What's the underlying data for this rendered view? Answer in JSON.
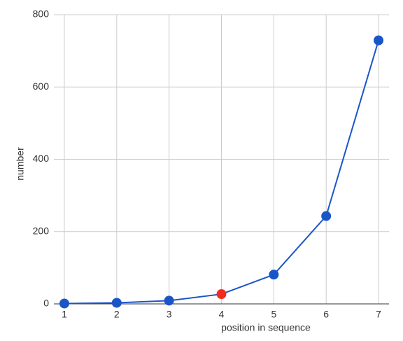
{
  "chart_data": {
    "type": "line",
    "x": [
      1,
      2,
      3,
      4,
      5,
      6,
      7
    ],
    "values": [
      1,
      3,
      9,
      27,
      81,
      243,
      729
    ],
    "color": "#1a55c8",
    "point_colors": [
      "#1a55c8",
      "#1a55c8",
      "#1a55c8",
      "#f42a1c",
      "#1a55c8",
      "#1a55c8",
      "#1a55c8"
    ],
    "xlabel": "position in sequence",
    "ylabel": "number",
    "xlim": [
      0.8,
      7.2
    ],
    "xticks": [
      1,
      2,
      3,
      4,
      5,
      6,
      7
    ],
    "ylim": [
      0,
      800
    ],
    "yticks": [
      0,
      200,
      400,
      600,
      800
    ],
    "grid": true
  }
}
